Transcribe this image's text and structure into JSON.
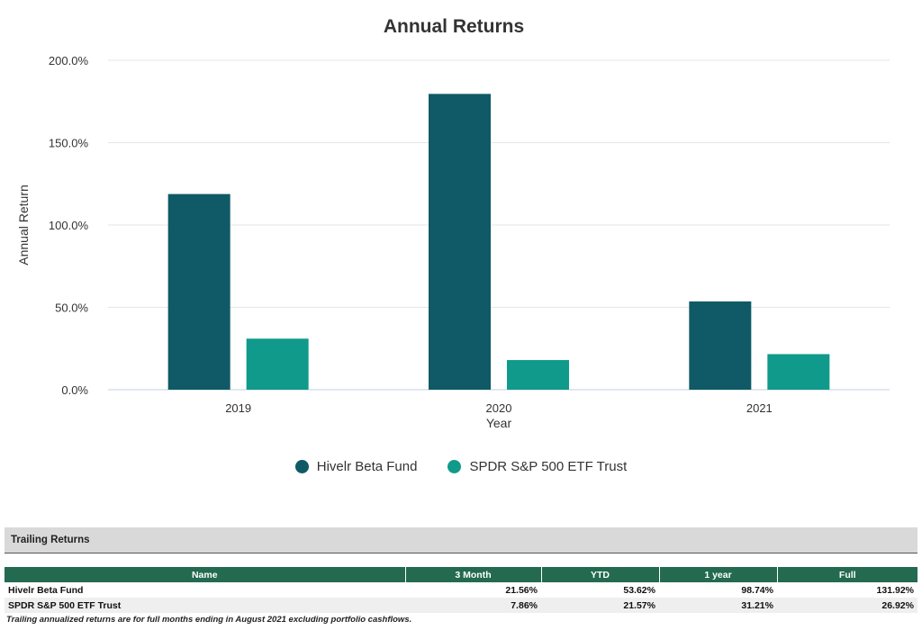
{
  "chart_data": {
    "type": "bar",
    "title": "Annual Returns",
    "xlabel": "Year",
    "ylabel": "Annual Return",
    "categories": [
      "2019",
      "2020",
      "2021"
    ],
    "ylim": [
      0,
      200
    ],
    "yticks": [
      "0.0%",
      "50.0%",
      "100.0%",
      "150.0%",
      "200.0%"
    ],
    "grid": true,
    "legend_position": "bottom",
    "series": [
      {
        "name": "Hivelr Beta Fund",
        "color": "#0f5a66",
        "values": [
          118.8,
          179.6,
          53.6
        ]
      },
      {
        "name": "SPDR S&P 500 ETF Trust",
        "color": "#109a8c",
        "values": [
          31.0,
          18.0,
          21.6
        ]
      }
    ]
  },
  "trailing": {
    "title": "Trailing Returns",
    "columns": [
      "Name",
      "3 Month",
      "YTD",
      "1 year",
      "Full"
    ],
    "rows": [
      {
        "name": "Hivelr Beta Fund",
        "m3": "21.56%",
        "ytd": "53.62%",
        "y1": "98.74%",
        "full": "131.92%"
      },
      {
        "name": "SPDR S&P 500 ETF Trust",
        "m3": "7.86%",
        "ytd": "21.57%",
        "y1": "31.21%",
        "full": "26.92%"
      }
    ],
    "footnote": "Trailing annualized returns are for full months ending in August 2021 excluding portfolio cashflows."
  }
}
